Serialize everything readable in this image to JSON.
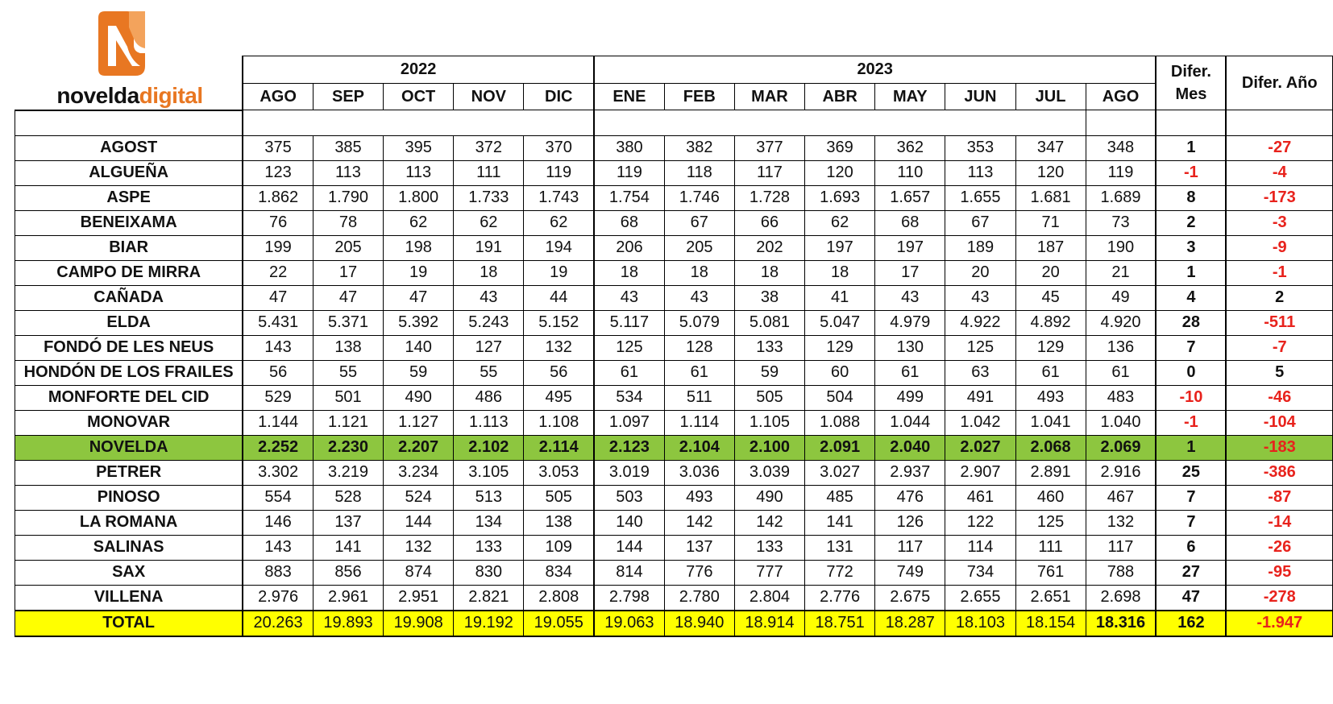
{
  "brand": {
    "text_dark": "novelda",
    "text_accent": "digital",
    "icon": "n-logo-icon",
    "accent_color": "#e87722"
  },
  "headers": {
    "year1": "2022",
    "year2": "2023",
    "months1": [
      "AGO",
      "SEP",
      "OCT",
      "NOV",
      "DIC"
    ],
    "months2": [
      "ENE",
      "FEB",
      "MAR",
      "ABR",
      "MAY",
      "JUN",
      "JUL",
      "AGO"
    ],
    "diff_month_1": "Difer.",
    "diff_month_2": "Mes",
    "diff_year": "Difer. Año"
  },
  "rows": [
    {
      "name": "AGOST",
      "values": [
        "375",
        "385",
        "395",
        "372",
        "370",
        "380",
        "382",
        "377",
        "369",
        "362",
        "353",
        "347",
        "348"
      ],
      "diff_month": "1",
      "diff_month_neg": false,
      "diff_year": "-27",
      "diff_year_neg": true
    },
    {
      "name": "ALGUEÑA",
      "values": [
        "123",
        "113",
        "113",
        "111",
        "119",
        "119",
        "118",
        "117",
        "120",
        "110",
        "113",
        "120",
        "119"
      ],
      "diff_month": "-1",
      "diff_month_neg": true,
      "diff_year": "-4",
      "diff_year_neg": true
    },
    {
      "name": "ASPE",
      "values": [
        "1.862",
        "1.790",
        "1.800",
        "1.733",
        "1.743",
        "1.754",
        "1.746",
        "1.728",
        "1.693",
        "1.657",
        "1.655",
        "1.681",
        "1.689"
      ],
      "diff_month": "8",
      "diff_month_neg": false,
      "diff_year": "-173",
      "diff_year_neg": true
    },
    {
      "name": "BENEIXAMA",
      "values": [
        "76",
        "78",
        "62",
        "62",
        "62",
        "68",
        "67",
        "66",
        "62",
        "68",
        "67",
        "71",
        "73"
      ],
      "diff_month": "2",
      "diff_month_neg": false,
      "diff_year": "-3",
      "diff_year_neg": true
    },
    {
      "name": "BIAR",
      "values": [
        "199",
        "205",
        "198",
        "191",
        "194",
        "206",
        "205",
        "202",
        "197",
        "197",
        "189",
        "187",
        "190"
      ],
      "diff_month": "3",
      "diff_month_neg": false,
      "diff_year": "-9",
      "diff_year_neg": true
    },
    {
      "name": "CAMPO DE MIRRA",
      "values": [
        "22",
        "17",
        "19",
        "18",
        "19",
        "18",
        "18",
        "18",
        "18",
        "17",
        "20",
        "20",
        "21"
      ],
      "diff_month": "1",
      "diff_month_neg": false,
      "diff_year": "-1",
      "diff_year_neg": true
    },
    {
      "name": "CAÑADA",
      "values": [
        "47",
        "47",
        "47",
        "43",
        "44",
        "43",
        "43",
        "38",
        "41",
        "43",
        "43",
        "45",
        "49"
      ],
      "diff_month": "4",
      "diff_month_neg": false,
      "diff_year": "2",
      "diff_year_neg": false
    },
    {
      "name": "ELDA",
      "values": [
        "5.431",
        "5.371",
        "5.392",
        "5.243",
        "5.152",
        "5.117",
        "5.079",
        "5.081",
        "5.047",
        "4.979",
        "4.922",
        "4.892",
        "4.920"
      ],
      "diff_month": "28",
      "diff_month_neg": false,
      "diff_year": "-511",
      "diff_year_neg": true
    },
    {
      "name": "FONDÓ DE LES NEUS",
      "values": [
        "143",
        "138",
        "140",
        "127",
        "132",
        "125",
        "128",
        "133",
        "129",
        "130",
        "125",
        "129",
        "136"
      ],
      "diff_month": "7",
      "diff_month_neg": false,
      "diff_year": "-7",
      "diff_year_neg": true
    },
    {
      "name": "HONDÓN DE LOS FRAILES",
      "values": [
        "56",
        "55",
        "59",
        "55",
        "56",
        "61",
        "61",
        "59",
        "60",
        "61",
        "63",
        "61",
        "61"
      ],
      "diff_month": "0",
      "diff_month_neg": false,
      "diff_year": "5",
      "diff_year_neg": false
    },
    {
      "name": "MONFORTE DEL CID",
      "values": [
        "529",
        "501",
        "490",
        "486",
        "495",
        "534",
        "511",
        "505",
        "504",
        "499",
        "491",
        "493",
        "483"
      ],
      "diff_month": "-10",
      "diff_month_neg": true,
      "diff_year": "-46",
      "diff_year_neg": true
    },
    {
      "name": "MONOVAR",
      "values": [
        "1.144",
        "1.121",
        "1.127",
        "1.113",
        "1.108",
        "1.097",
        "1.114",
        "1.105",
        "1.088",
        "1.044",
        "1.042",
        "1.041",
        "1.040"
      ],
      "diff_month": "-1",
      "diff_month_neg": true,
      "diff_year": "-104",
      "diff_year_neg": true
    },
    {
      "name": "NOVELDA",
      "values": [
        "2.252",
        "2.230",
        "2.207",
        "2.102",
        "2.114",
        "2.123",
        "2.104",
        "2.100",
        "2.091",
        "2.040",
        "2.027",
        "2.068",
        "2.069"
      ],
      "diff_month": "1",
      "diff_month_neg": false,
      "diff_year": "-183",
      "diff_year_neg": true,
      "highlight": true,
      "highlight_color": "#8dc63f"
    },
    {
      "name": "PETRER",
      "values": [
        "3.302",
        "3.219",
        "3.234",
        "3.105",
        "3.053",
        "3.019",
        "3.036",
        "3.039",
        "3.027",
        "2.937",
        "2.907",
        "2.891",
        "2.916"
      ],
      "diff_month": "25",
      "diff_month_neg": false,
      "diff_year": "-386",
      "diff_year_neg": true
    },
    {
      "name": "PINOSO",
      "values": [
        "554",
        "528",
        "524",
        "513",
        "505",
        "503",
        "493",
        "490",
        "485",
        "476",
        "461",
        "460",
        "467"
      ],
      "diff_month": "7",
      "diff_month_neg": false,
      "diff_year": "-87",
      "diff_year_neg": true
    },
    {
      "name": "LA ROMANA",
      "values": [
        "146",
        "137",
        "144",
        "134",
        "138",
        "140",
        "142",
        "142",
        "141",
        "126",
        "122",
        "125",
        "132"
      ],
      "diff_month": "7",
      "diff_month_neg": false,
      "diff_year": "-14",
      "diff_year_neg": true
    },
    {
      "name": "SALINAS",
      "values": [
        "143",
        "141",
        "132",
        "133",
        "109",
        "144",
        "137",
        "133",
        "131",
        "117",
        "114",
        "111",
        "117"
      ],
      "diff_month": "6",
      "diff_month_neg": false,
      "diff_year": "-26",
      "diff_year_neg": true
    },
    {
      "name": "SAX",
      "values": [
        "883",
        "856",
        "874",
        "830",
        "834",
        "814",
        "776",
        "777",
        "772",
        "749",
        "734",
        "761",
        "788"
      ],
      "diff_month": "27",
      "diff_month_neg": false,
      "diff_year": "-95",
      "diff_year_neg": true
    },
    {
      "name": "VILLENA",
      "values": [
        "2.976",
        "2.961",
        "2.951",
        "2.821",
        "2.808",
        "2.798",
        "2.780",
        "2.804",
        "2.776",
        "2.675",
        "2.655",
        "2.651",
        "2.698"
      ],
      "diff_month": "47",
      "diff_month_neg": false,
      "diff_year": "-278",
      "diff_year_neg": true
    }
  ],
  "total": {
    "name": "TOTAL",
    "values": [
      "20.263",
      "19.893",
      "19.908",
      "19.192",
      "19.055",
      "19.063",
      "18.940",
      "18.914",
      "18.751",
      "18.287",
      "18.103",
      "18.154",
      "18.316"
    ],
    "diff_month": "162",
    "diff_year": "-1.947",
    "color": "#ffff00"
  },
  "colors": {
    "negative": "#e8221c"
  }
}
